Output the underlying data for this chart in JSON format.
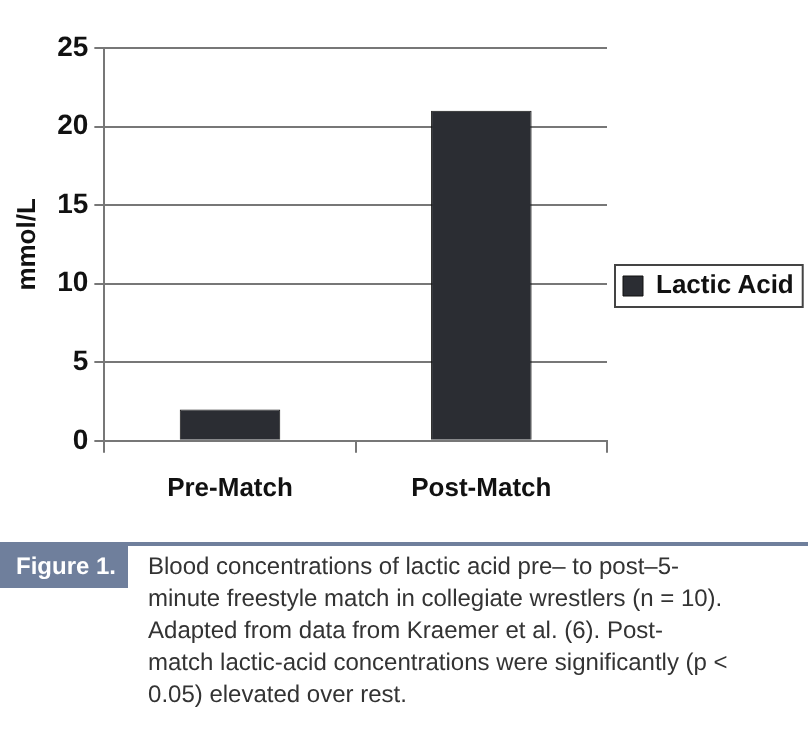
{
  "chart_data": {
    "type": "bar",
    "ylabel": "mmol/L",
    "categories": [
      "Pre-Match",
      "Post-Match"
    ],
    "series": [
      {
        "name": "Lactic Acid",
        "color": "#2b2d33",
        "values": [
          2,
          21
        ]
      }
    ],
    "ylim": [
      0,
      25
    ],
    "yticks": [
      0,
      5,
      10,
      15,
      20,
      25
    ],
    "grid": "y",
    "legend": "right",
    "annotations": [
      "Figure 1.",
      "Blood concentrations of lactic acid pre– to post–5-minute freestyle match in collegiate wrestlers (n = 10). Adapted from data from Kraemer et al. (6). Post-match lactic-acid concentrations were significantly (p < 0.05) elevated over rest."
    ]
  }
}
